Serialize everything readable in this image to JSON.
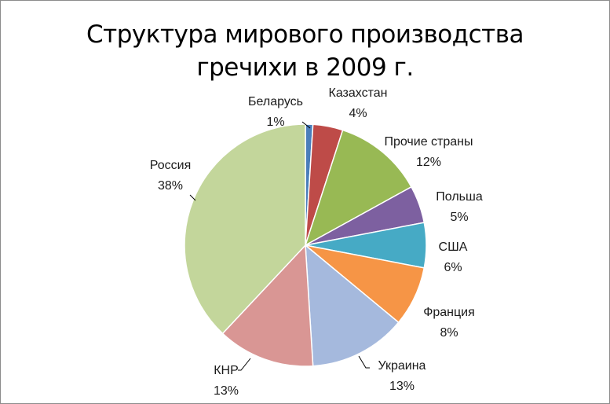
{
  "chart_data": {
    "type": "pie",
    "title": "Структура мирового производства гречихи в 2009 г.",
    "title_lines": [
      "Структура мирового производства",
      "гречихи в 2009 г."
    ],
    "start_angle_deg": 0,
    "direction": "clockwise",
    "slices": [
      {
        "name": "Беларусь",
        "value": 1,
        "label": "1%",
        "color": "#4a7ebb"
      },
      {
        "name": "Казахстан",
        "value": 4,
        "label": "4%",
        "color": "#be4b48"
      },
      {
        "name": "Прочие страны",
        "value": 12,
        "label": "12%",
        "color": "#98b954"
      },
      {
        "name": "Польша",
        "value": 5,
        "label": "5%",
        "color": "#7d60a0"
      },
      {
        "name": "США",
        "value": 6,
        "label": "6%",
        "color": "#46aac5"
      },
      {
        "name": "Франция",
        "value": 8,
        "label": "8%",
        "color": "#f69546"
      },
      {
        "name": "Украина",
        "value": 13,
        "label": "13%",
        "color": "#a5b9dd"
      },
      {
        "name": "КНР",
        "value": 13,
        "label": "13%",
        "color": "#d99694"
      },
      {
        "name": "Россия",
        "value": 38,
        "label": "38%",
        "color": "#c3d69b"
      }
    ]
  }
}
